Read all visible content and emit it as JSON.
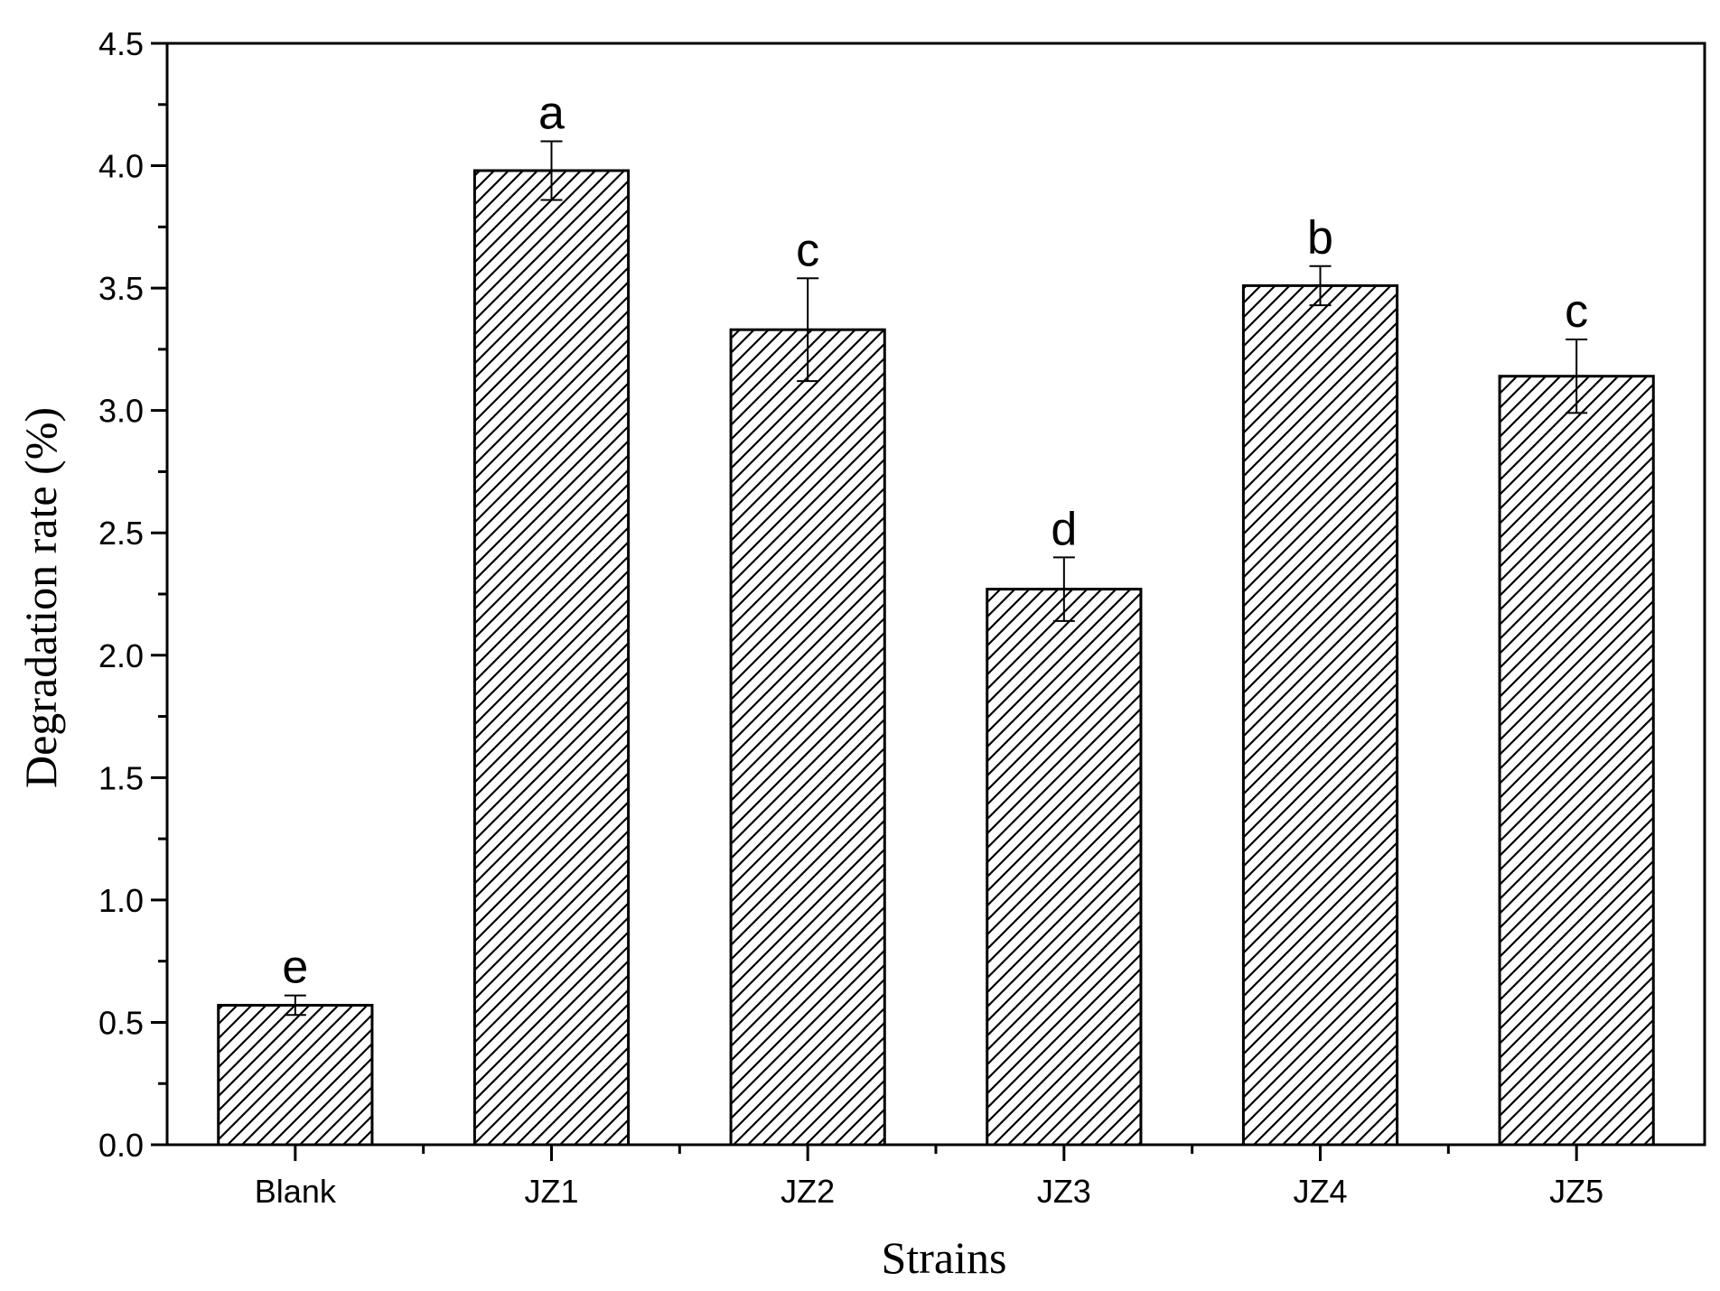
{
  "chart_data": {
    "type": "bar",
    "title": "",
    "xlabel": "Strains",
    "ylabel": "Degradation rate (%)",
    "ylim": [
      0,
      4.5
    ],
    "yticks": [
      "0.0",
      "0.5",
      "1.0",
      "1.5",
      "2.0",
      "2.5",
      "3.0",
      "3.5",
      "4.0",
      "4.5"
    ],
    "categories": [
      "Blank",
      "JZ1",
      "JZ2",
      "JZ3",
      "JZ4",
      "JZ5"
    ],
    "values": [
      0.57,
      3.98,
      3.33,
      2.27,
      3.51,
      3.14
    ],
    "errors": [
      0.04,
      0.12,
      0.21,
      0.13,
      0.08,
      0.15
    ],
    "significance": [
      "e",
      "a",
      "c",
      "d",
      "b",
      "c"
    ],
    "bar_fill": "hatched",
    "grid": false,
    "legend": "none",
    "colors": {
      "bar_stroke": "#000000",
      "hatch": "#000000",
      "background": "#ffffff"
    }
  }
}
